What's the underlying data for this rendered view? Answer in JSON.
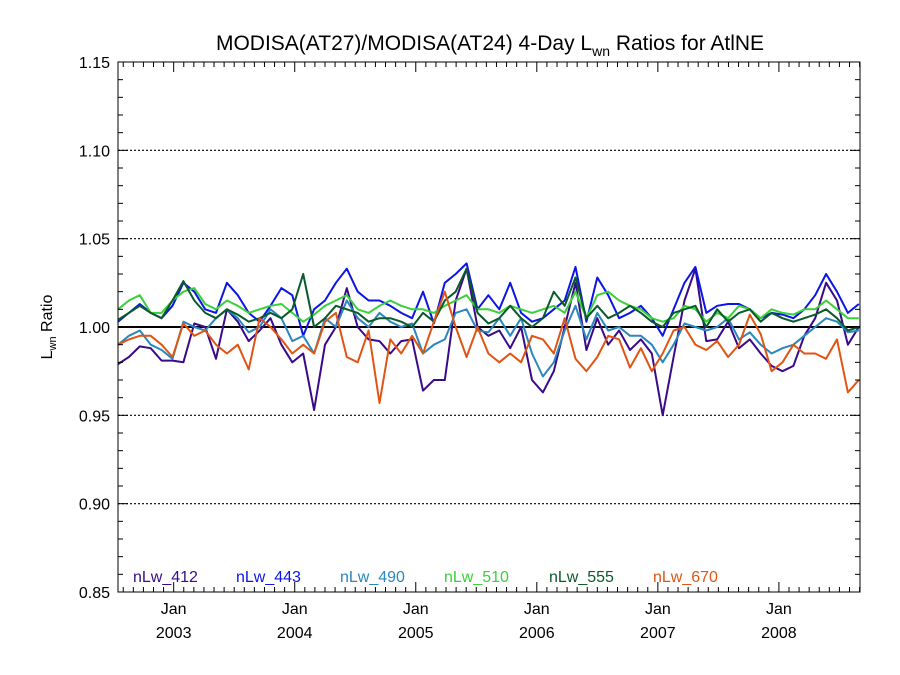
{
  "chart_data": {
    "type": "line",
    "title": {
      "prefix": "MODISA(AT27)/MODISA(AT24) 4-Day L",
      "subscript": "wn",
      "suffix": " Ratios for AtlNE"
    },
    "ylabel": {
      "main": "L",
      "subscript": "wn",
      "suffix": " Ratio"
    },
    "xlabel": "",
    "ylim": [
      0.85,
      1.15
    ],
    "y_ticks": [
      "0.85",
      "0.90",
      "0.95",
      "1.00",
      "1.05",
      "1.10",
      "1.15"
    ],
    "y_gridlines": [
      0.9,
      0.95,
      1.05,
      1.1
    ],
    "reference_line": 1.0,
    "xlim": [
      2002.54,
      2008.67
    ],
    "x_ticks": [
      {
        "value": 2003.0,
        "month": "Jan",
        "year": "2003"
      },
      {
        "value": 2004.0,
        "month": "Jan",
        "year": "2004"
      },
      {
        "value": 2005.0,
        "month": "Jan",
        "year": "2005"
      },
      {
        "value": 2006.0,
        "month": "Jan",
        "year": "2006"
      },
      {
        "value": 2007.0,
        "month": "Jan",
        "year": "2007"
      },
      {
        "value": 2008.0,
        "month": "Jan",
        "year": "2008"
      }
    ],
    "x": [
      2002.54,
      2002.63,
      2002.72,
      2002.81,
      2002.9,
      2002.99,
      2003.08,
      2003.17,
      2003.26,
      2003.35,
      2003.44,
      2003.53,
      2003.62,
      2003.71,
      2003.8,
      2003.89,
      2003.98,
      2004.07,
      2004.16,
      2004.25,
      2004.34,
      2004.43,
      2004.52,
      2004.61,
      2004.7,
      2004.79,
      2004.88,
      2004.97,
      2005.06,
      2005.15,
      2005.24,
      2005.33,
      2005.42,
      2005.51,
      2005.6,
      2005.69,
      2005.78,
      2005.87,
      2005.96,
      2006.05,
      2006.14,
      2006.23,
      2006.32,
      2006.41,
      2006.5,
      2006.59,
      2006.68,
      2006.77,
      2006.86,
      2006.95,
      2007.04,
      2007.13,
      2007.22,
      2007.31,
      2007.4,
      2007.49,
      2007.58,
      2007.67,
      2007.76,
      2007.85,
      2007.94,
      2008.03,
      2008.12,
      2008.21,
      2008.3,
      2008.39,
      2008.48,
      2008.57,
      2008.66
    ],
    "series": [
      {
        "name": "nLw_412",
        "color": "#3a0a8a",
        "values": [
          0.979,
          0.983,
          0.989,
          0.988,
          0.981,
          0.981,
          0.98,
          1.002,
          1.0,
          0.982,
          1.01,
          1.003,
          0.992,
          0.998,
          1.005,
          0.99,
          0.98,
          0.985,
          0.953,
          0.99,
          1.0,
          1.022,
          1.0,
          0.993,
          0.992,
          0.985,
          0.992,
          0.993,
          0.964,
          0.97,
          0.97,
          1.015,
          1.033,
          1.0,
          0.995,
          0.998,
          0.988,
          1.0,
          0.97,
          0.963,
          0.975,
          1.0,
          1.025,
          0.987,
          1.005,
          0.99,
          0.998,
          0.987,
          0.993,
          0.985,
          0.95,
          0.983,
          1.015,
          1.033,
          0.992,
          0.993,
          1.003,
          0.988,
          0.993,
          0.985,
          0.978,
          0.975,
          0.978,
          0.995,
          1.005,
          1.025,
          1.015,
          0.99,
          1.0
        ]
      },
      {
        "name": "nLw_443",
        "color": "#0b16e6",
        "values": [
          1.003,
          1.008,
          1.013,
          1.008,
          1.005,
          1.012,
          1.025,
          1.02,
          1.01,
          1.008,
          1.025,
          1.018,
          1.008,
          1.003,
          1.012,
          1.022,
          1.018,
          0.995,
          1.01,
          1.015,
          1.025,
          1.033,
          1.02,
          1.015,
          1.015,
          1.012,
          1.008,
          1.005,
          1.02,
          1.002,
          1.025,
          1.03,
          1.036,
          1.01,
          1.018,
          1.01,
          1.025,
          1.008,
          1.003,
          1.005,
          1.01,
          1.015,
          1.034,
          1.003,
          1.028,
          1.018,
          1.005,
          1.008,
          1.012,
          1.005,
          0.995,
          1.01,
          1.025,
          1.034,
          1.008,
          1.012,
          1.013,
          1.013,
          1.01,
          1.005,
          1.008,
          1.007,
          1.005,
          1.01,
          1.018,
          1.03,
          1.02,
          1.008,
          1.013
        ]
      },
      {
        "name": "nLw_490",
        "color": "#2a87c0",
        "values": [
          0.99,
          0.995,
          0.998,
          0.99,
          0.987,
          0.982,
          1.003,
          1.0,
          0.998,
          1.005,
          1.01,
          1.005,
          0.997,
          1.0,
          1.01,
          1.005,
          0.992,
          0.995,
          0.985,
          1.005,
          1.0,
          1.015,
          1.005,
          1.0,
          1.008,
          1.003,
          1.0,
          1.002,
          0.985,
          0.99,
          0.993,
          1.008,
          1.01,
          0.998,
          0.997,
          1.005,
          0.995,
          1.005,
          0.985,
          0.972,
          0.98,
          0.998,
          1.012,
          0.993,
          1.008,
          0.998,
          1.0,
          0.995,
          0.995,
          0.99,
          0.98,
          0.99,
          1.002,
          1.0,
          0.998,
          1.0,
          1.005,
          0.993,
          0.997,
          0.99,
          0.985,
          0.988,
          0.99,
          0.995,
          1.0,
          1.005,
          1.003,
          0.997,
          0.998
        ]
      },
      {
        "name": "nLw_510",
        "color": "#39d13a",
        "values": [
          1.01,
          1.015,
          1.018,
          1.008,
          1.008,
          1.015,
          1.02,
          1.022,
          1.013,
          1.01,
          1.015,
          1.012,
          1.008,
          1.01,
          1.012,
          1.013,
          1.008,
          1.003,
          1.007,
          1.012,
          1.015,
          1.018,
          1.01,
          1.008,
          1.012,
          1.015,
          1.012,
          1.01,
          1.01,
          1.008,
          1.012,
          1.015,
          1.018,
          1.01,
          1.01,
          1.008,
          1.012,
          1.01,
          1.008,
          1.01,
          1.012,
          1.008,
          1.02,
          1.005,
          1.018,
          1.02,
          1.015,
          1.012,
          1.01,
          1.005,
          1.003,
          1.005,
          1.012,
          1.01,
          1.003,
          1.008,
          1.005,
          1.012,
          1.01,
          1.005,
          1.01,
          1.008,
          1.007,
          1.01,
          1.01,
          1.015,
          1.01,
          1.005,
          1.005
        ]
      },
      {
        "name": "nLw_555",
        "color": "#0a5a2a",
        "values": [
          1.004,
          1.008,
          1.012,
          1.008,
          1.005,
          1.015,
          1.026,
          1.015,
          1.008,
          1.005,
          1.01,
          1.007,
          1.003,
          1.005,
          1.008,
          1.005,
          1.01,
          1.03,
          1.0,
          1.005,
          1.012,
          1.01,
          1.008,
          1.003,
          1.005,
          1.005,
          1.003,
          1.0,
          1.008,
          1.003,
          1.015,
          1.02,
          1.033,
          1.008,
          1.002,
          1.005,
          1.012,
          1.005,
          1.0,
          1.005,
          1.02,
          1.012,
          1.028,
          1.005,
          1.012,
          1.005,
          1.008,
          1.012,
          1.008,
          1.003,
          1.0,
          1.008,
          1.01,
          1.012,
          1.0,
          1.01,
          1.003,
          1.008,
          1.01,
          1.003,
          1.008,
          1.005,
          1.003,
          1.005,
          1.007,
          1.01,
          1.005,
          0.998,
          1.0
        ]
      },
      {
        "name": "nLw_670",
        "color": "#e05513",
        "values": [
          0.99,
          0.993,
          0.995,
          0.995,
          0.99,
          0.983,
          1.002,
          0.995,
          0.998,
          0.99,
          0.985,
          0.99,
          0.976,
          1.005,
          1.0,
          0.993,
          0.985,
          0.99,
          0.985,
          1.003,
          1.008,
          0.983,
          0.98,
          0.998,
          0.957,
          0.993,
          0.985,
          0.995,
          0.985,
          1.003,
          1.02,
          1.0,
          0.983,
          1.0,
          0.985,
          0.98,
          0.985,
          0.98,
          0.995,
          0.993,
          0.985,
          1.005,
          0.982,
          0.975,
          0.983,
          0.995,
          0.993,
          0.977,
          0.988,
          0.975,
          0.985,
          0.998,
          1.0,
          0.99,
          0.987,
          0.992,
          0.983,
          0.99,
          1.007,
          0.996,
          0.975,
          0.98,
          0.99,
          0.985,
          0.985,
          0.982,
          0.993,
          0.963,
          0.97
        ]
      }
    ]
  }
}
